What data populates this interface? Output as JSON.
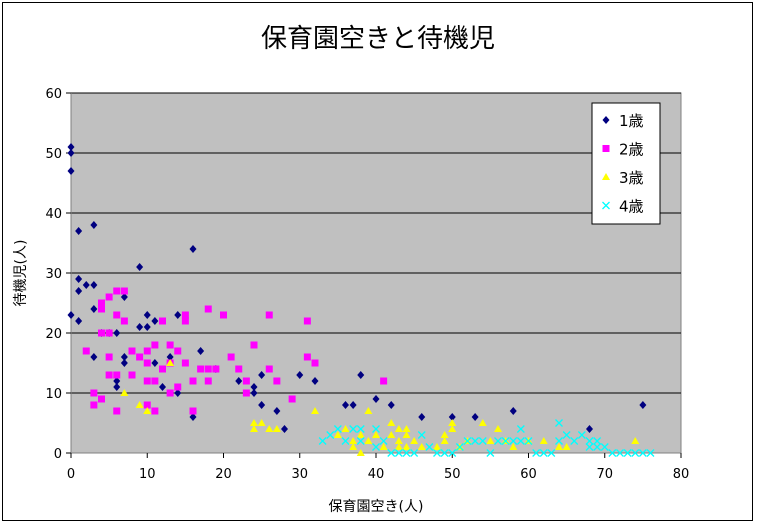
{
  "chart_data": {
    "type": "scatter",
    "title": "保育園空きと待機児",
    "xlabel": "保育園空き(人)",
    "ylabel": "待機児(人)",
    "xlim": [
      0,
      80
    ],
    "ylim": [
      0,
      60
    ],
    "xticks": [
      0,
      10,
      20,
      30,
      40,
      50,
      60,
      70,
      80
    ],
    "yticks": [
      0,
      10,
      20,
      30,
      40,
      50,
      60
    ],
    "grid": "horizontal",
    "legend_position": "top-right",
    "plot_background": "#c0c0c0",
    "series": [
      {
        "name": "1歳",
        "marker": "diamond",
        "color": "#000080",
        "points": [
          [
            0,
            51
          ],
          [
            0,
            50
          ],
          [
            0,
            47
          ],
          [
            0,
            23
          ],
          [
            1,
            37
          ],
          [
            1,
            29
          ],
          [
            1,
            27
          ],
          [
            1,
            22
          ],
          [
            2,
            28
          ],
          [
            3,
            28
          ],
          [
            3,
            38
          ],
          [
            3,
            24
          ],
          [
            3,
            16
          ],
          [
            4,
            20
          ],
          [
            5,
            20
          ],
          [
            6,
            20
          ],
          [
            6,
            12
          ],
          [
            6,
            11
          ],
          [
            7,
            26
          ],
          [
            7,
            16
          ],
          [
            7,
            15
          ],
          [
            9,
            31
          ],
          [
            9,
            21
          ],
          [
            10,
            23
          ],
          [
            10,
            21
          ],
          [
            11,
            22
          ],
          [
            11,
            15
          ],
          [
            12,
            11
          ],
          [
            13,
            16
          ],
          [
            14,
            23
          ],
          [
            14,
            10
          ],
          [
            16,
            34
          ],
          [
            16,
            6
          ],
          [
            17,
            17
          ],
          [
            19,
            14
          ],
          [
            22,
            12
          ],
          [
            24,
            11
          ],
          [
            24,
            10
          ],
          [
            25,
            13
          ],
          [
            25,
            8
          ],
          [
            27,
            7
          ],
          [
            28,
            4
          ],
          [
            30,
            13
          ],
          [
            32,
            12
          ],
          [
            36,
            8
          ],
          [
            37,
            8
          ],
          [
            38,
            13
          ],
          [
            40,
            9
          ],
          [
            42,
            8
          ],
          [
            46,
            6
          ],
          [
            50,
            6
          ],
          [
            53,
            6
          ],
          [
            58,
            7
          ],
          [
            68,
            4
          ],
          [
            75,
            8
          ]
        ]
      },
      {
        "name": "2歳",
        "marker": "square",
        "color": "#ff00ff",
        "points": [
          [
            2,
            17
          ],
          [
            3,
            10
          ],
          [
            3,
            8
          ],
          [
            4,
            25
          ],
          [
            4,
            24
          ],
          [
            4,
            20
          ],
          [
            4,
            9
          ],
          [
            5,
            26
          ],
          [
            5,
            20
          ],
          [
            5,
            16
          ],
          [
            5,
            13
          ],
          [
            6,
            27
          ],
          [
            6,
            23
          ],
          [
            6,
            13
          ],
          [
            6,
            7
          ],
          [
            7,
            27
          ],
          [
            7,
            22
          ],
          [
            8,
            17
          ],
          [
            8,
            13
          ],
          [
            9,
            16
          ],
          [
            10,
            17
          ],
          [
            10,
            15
          ],
          [
            10,
            12
          ],
          [
            10,
            8
          ],
          [
            11,
            18
          ],
          [
            11,
            12
          ],
          [
            11,
            7
          ],
          [
            12,
            22
          ],
          [
            12,
            14
          ],
          [
            13,
            18
          ],
          [
            13,
            15
          ],
          [
            13,
            10
          ],
          [
            14,
            17
          ],
          [
            14,
            11
          ],
          [
            15,
            23
          ],
          [
            15,
            22
          ],
          [
            15,
            15
          ],
          [
            16,
            12
          ],
          [
            16,
            7
          ],
          [
            17,
            14
          ],
          [
            18,
            24
          ],
          [
            18,
            14
          ],
          [
            18,
            12
          ],
          [
            19,
            14
          ],
          [
            20,
            23
          ],
          [
            21,
            16
          ],
          [
            22,
            14
          ],
          [
            23,
            12
          ],
          [
            23,
            10
          ],
          [
            24,
            18
          ],
          [
            26,
            23
          ],
          [
            26,
            14
          ],
          [
            27,
            12
          ],
          [
            29,
            9
          ],
          [
            31,
            22
          ],
          [
            31,
            16
          ],
          [
            32,
            15
          ],
          [
            41,
            12
          ]
        ]
      },
      {
        "name": "3歳",
        "marker": "triangle",
        "color": "#ffff00",
        "points": [
          [
            7,
            10
          ],
          [
            9,
            8
          ],
          [
            10,
            7
          ],
          [
            13,
            15
          ],
          [
            24,
            5
          ],
          [
            24,
            4
          ],
          [
            25,
            5
          ],
          [
            26,
            4
          ],
          [
            27,
            4
          ],
          [
            32,
            7
          ],
          [
            35,
            3
          ],
          [
            36,
            4
          ],
          [
            37,
            2
          ],
          [
            37,
            1
          ],
          [
            38,
            3
          ],
          [
            38,
            0
          ],
          [
            39,
            7
          ],
          [
            39,
            2
          ],
          [
            40,
            3
          ],
          [
            41,
            1
          ],
          [
            42,
            5
          ],
          [
            42,
            3
          ],
          [
            43,
            4
          ],
          [
            43,
            2
          ],
          [
            43,
            1
          ],
          [
            44,
            4
          ],
          [
            44,
            3
          ],
          [
            44,
            1
          ],
          [
            45,
            2
          ],
          [
            46,
            1
          ],
          [
            48,
            1
          ],
          [
            49,
            3
          ],
          [
            49,
            2
          ],
          [
            50,
            5
          ],
          [
            50,
            4
          ],
          [
            51,
            1
          ],
          [
            52,
            2
          ],
          [
            54,
            5
          ],
          [
            55,
            2
          ],
          [
            56,
            4
          ],
          [
            57,
            2
          ],
          [
            58,
            1
          ],
          [
            60,
            2
          ],
          [
            62,
            2
          ],
          [
            64,
            1
          ],
          [
            65,
            1
          ],
          [
            74,
            2
          ]
        ]
      },
      {
        "name": "4歳",
        "marker": "x",
        "color": "#00ffff",
        "points": [
          [
            33,
            2
          ],
          [
            34,
            3
          ],
          [
            35,
            4
          ],
          [
            36,
            2
          ],
          [
            37,
            4
          ],
          [
            38,
            2
          ],
          [
            38,
            4
          ],
          [
            40,
            1
          ],
          [
            40,
            4
          ],
          [
            41,
            2
          ],
          [
            42,
            0
          ],
          [
            43,
            0
          ],
          [
            44,
            0
          ],
          [
            45,
            0
          ],
          [
            46,
            3
          ],
          [
            47,
            1
          ],
          [
            48,
            0
          ],
          [
            49,
            0
          ],
          [
            50,
            0
          ],
          [
            51,
            1
          ],
          [
            52,
            2
          ],
          [
            53,
            2
          ],
          [
            54,
            2
          ],
          [
            55,
            0
          ],
          [
            56,
            2
          ],
          [
            57,
            2
          ],
          [
            58,
            2
          ],
          [
            59,
            2
          ],
          [
            59,
            4
          ],
          [
            60,
            2
          ],
          [
            61,
            0
          ],
          [
            62,
            0
          ],
          [
            63,
            0
          ],
          [
            64,
            2
          ],
          [
            64,
            5
          ],
          [
            65,
            3
          ],
          [
            66,
            2
          ],
          [
            67,
            3
          ],
          [
            68,
            2
          ],
          [
            68,
            1
          ],
          [
            69,
            1
          ],
          [
            69,
            2
          ],
          [
            70,
            1
          ],
          [
            71,
            0
          ],
          [
            72,
            0
          ],
          [
            73,
            0
          ],
          [
            74,
            0
          ],
          [
            75,
            0
          ],
          [
            76,
            0
          ]
        ]
      }
    ]
  }
}
